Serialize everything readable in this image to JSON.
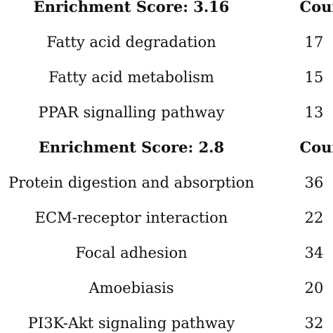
{
  "table": {
    "groups": [
      {
        "header": [
          "Enrichment Score: 3.16",
          "Count"
        ],
        "rows": [
          [
            "Fatty acid degradation",
            "17"
          ],
          [
            "Fatty acid metabolism",
            "15"
          ],
          [
            "PPAR signalling pathway",
            "13"
          ]
        ]
      },
      {
        "header": [
          "Enrichment Score: 2.8",
          "Count"
        ],
        "rows": [
          [
            "Protein digestion and absorption",
            "36"
          ],
          [
            "ECM-receptor interaction",
            "22"
          ],
          [
            "Focal adhesion",
            "34"
          ],
          [
            "Amoebiasis",
            "20"
          ],
          [
            "PI3K-Akt signaling pathway",
            "32"
          ]
        ]
      }
    ]
  }
}
